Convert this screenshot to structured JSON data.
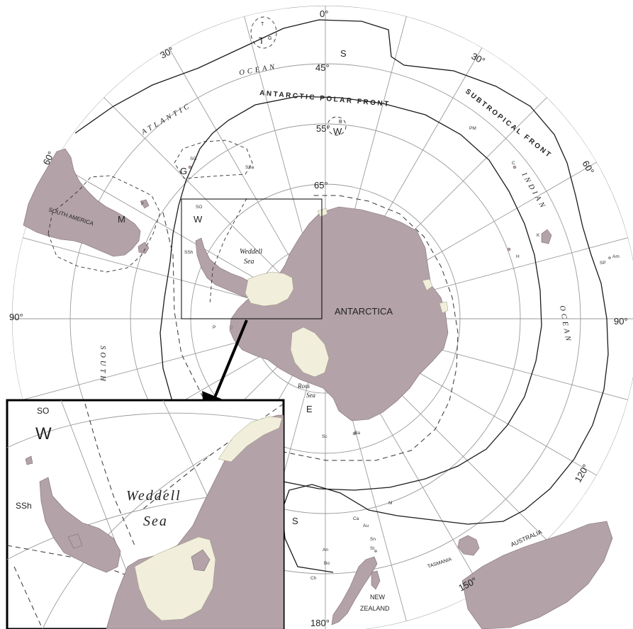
{
  "degree_labels": {
    "top": "0°",
    "upper_left": "30°",
    "upper_right": "30°",
    "left_60": "60°",
    "right_60": "60°",
    "left_90": "90°",
    "right_90": "90°",
    "right_120": "120°",
    "right_150": "150°",
    "bottom": "180°",
    "lat_45": "45°",
    "lat_55": "55°",
    "lat_65": "65°"
  },
  "fronts": {
    "polar": "ANTARCTIC POLAR FRONT",
    "subtropical": "SUBTROPICAL FRONT"
  },
  "oceans": {
    "atlantic": "ATLANTIC",
    "ocean_left": "OCEAN",
    "indian": "INDIAN",
    "ocean_right": "OCEAN",
    "south": "SOUTH"
  },
  "landmasses": {
    "antarctica": "ANTARCTICA",
    "south_america": "SOUTH AMERICA",
    "australia": "AUSTRALIA",
    "tasmania": "TASMANIA",
    "new_zealand_1": "NEW",
    "new_zealand_2": "ZEALAND"
  },
  "seas": {
    "weddell_1": "Weddell",
    "weddell_2": "Sea",
    "ross_1": "Ross",
    "ross_2": "Sea"
  },
  "regions": {
    "S_top": "S",
    "T": "T",
    "T_G": "G",
    "T_small": "T",
    "B": "B",
    "W_55": "W",
    "G": "G",
    "M": "M",
    "W_65": "W",
    "E": "E",
    "S_bottom": "S"
  },
  "islands": {
    "SG": "SG",
    "SSa": "SSa",
    "SO": "SO",
    "SSh": "SSh",
    "F": "F",
    "P": "P",
    "PM": "PM",
    "C": "C",
    "K": "K",
    "H": "H",
    "SP": "SP",
    "Am": "Am",
    "M_mac": "M",
    "Ba": "Ba",
    "Sc": "Sc",
    "Ca": "Ca",
    "Au": "Au",
    "Sn": "Sn",
    "St": "St",
    "An": "An",
    "Bo": "Bo",
    "Ch": "Ch"
  },
  "inset": {
    "SO": "SO",
    "W": "W",
    "SSh": "SSh",
    "weddell_1": "Weddell",
    "weddell_2": "Sea"
  },
  "colors": {
    "land": "#b3a2a8",
    "ice_shelf": "#f1eedb",
    "graticule": "#9a9a9a",
    "front_line": "#1a1a1a"
  }
}
